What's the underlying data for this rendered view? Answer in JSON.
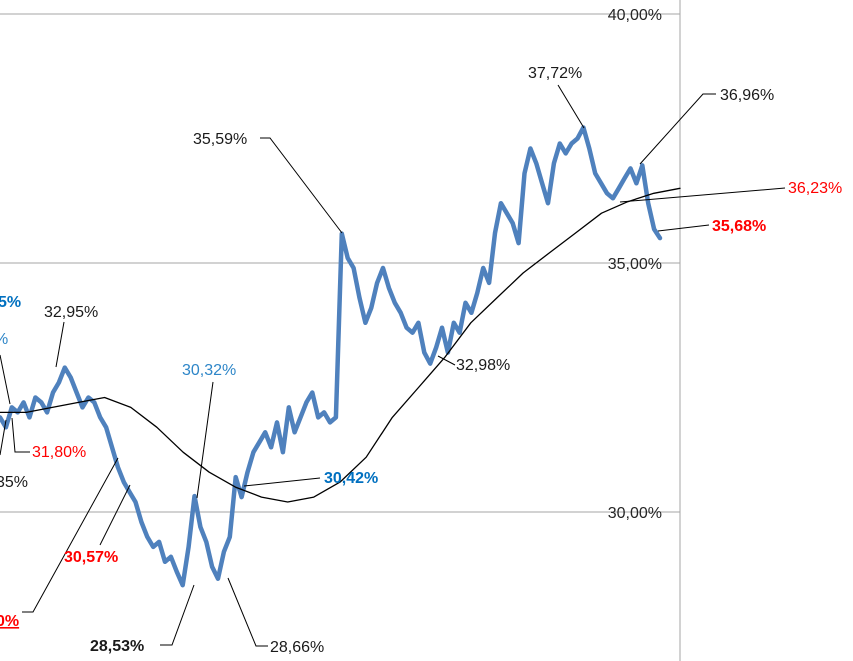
{
  "chart_data": {
    "type": "line",
    "title": "",
    "xlabel": "",
    "ylabel": "",
    "ylim": [
      27.5,
      40.0
    ],
    "y_axis_position": "right",
    "grid": true,
    "y_ticks": [
      {
        "value": 30.0,
        "label": "30,00%"
      },
      {
        "value": 35.0,
        "label": "35,00%"
      },
      {
        "value": 40.0,
        "label": "40,00%"
      }
    ],
    "colors": {
      "main_series": "#4f81bd",
      "moving_average": "#000000",
      "grid": "#a6a6a6",
      "label_black": "#1a1a1a",
      "label_red": "#ff0000",
      "label_blue": "#0070c0",
      "label_light_blue": "#2e86c8"
    },
    "series": [
      {
        "values": [
          31.9,
          31.7,
          32.1,
          32.0,
          32.2,
          31.9,
          32.3,
          32.2,
          32.0,
          32.4,
          32.6,
          32.9,
          32.7,
          32.4,
          32.1,
          32.3,
          32.2,
          31.9,
          31.7,
          31.3,
          30.9,
          30.6,
          30.4,
          30.2,
          29.8,
          29.5,
          29.3,
          29.4,
          29.0,
          29.1,
          28.8,
          28.53,
          29.3,
          30.32,
          29.7,
          29.4,
          28.9,
          28.66,
          29.2,
          29.5,
          30.7,
          30.3,
          30.8,
          31.2,
          31.4,
          31.6,
          31.3,
          31.8,
          31.2,
          32.1,
          31.6,
          31.9,
          32.2,
          32.4,
          31.9,
          32.0,
          31.8,
          31.9,
          35.59,
          35.1,
          34.9,
          34.3,
          33.8,
          34.1,
          34.6,
          34.9,
          34.5,
          34.2,
          34.0,
          33.7,
          33.6,
          33.8,
          33.2,
          32.98,
          33.3,
          33.7,
          33.2,
          33.8,
          33.6,
          34.2,
          34.0,
          34.4,
          34.9,
          34.6,
          35.6,
          36.2,
          36.0,
          35.8,
          35.4,
          36.8,
          37.3,
          37.0,
          36.6,
          36.2,
          37.0,
          37.4,
          37.2,
          37.4,
          37.5,
          37.72,
          37.3,
          36.8,
          36.6,
          36.4,
          36.3,
          36.5,
          36.7,
          36.9,
          36.6,
          36.96,
          36.2,
          35.68,
          35.5
        ],
        "color": "#4f81bd"
      },
      {
        "values": [
          32.0,
          32.0,
          32.1,
          32.2,
          32.3,
          32.1,
          31.7,
          31.2,
          30.8,
          30.5,
          30.3,
          30.2,
          30.3,
          30.6,
          31.1,
          31.9,
          32.5,
          33.1,
          33.8,
          34.3,
          34.8,
          35.2,
          35.6,
          36.0,
          36.23,
          36.4,
          36.5
        ],
        "color": "#000000"
      }
    ],
    "annotations": [
      {
        "text": "32,95%",
        "color": "black",
        "bold": false,
        "points_to_value": 32.95
      },
      {
        "text": "31,80%",
        "color": "red",
        "bold": false,
        "points_to_value": 31.8
      },
      {
        "text": "30,57%",
        "color": "red",
        "bold": true,
        "points_to_value": 30.57
      },
      {
        "text": "30,32%",
        "color": "light_blue",
        "bold": false,
        "points_to_value": 30.32
      },
      {
        "text": "30,42%",
        "color": "blue",
        "bold": true,
        "points_to_value": 30.42
      },
      {
        "text": "28,53%",
        "color": "black",
        "bold": true,
        "points_to_value": 28.53
      },
      {
        "text": "28,66%",
        "color": "black",
        "bold": false,
        "points_to_value": 28.66
      },
      {
        "text": "35,59%",
        "color": "black",
        "bold": false,
        "points_to_value": 35.59
      },
      {
        "text": "32,98%",
        "color": "black",
        "bold": false,
        "points_to_value": 32.98
      },
      {
        "text": "37,72%",
        "color": "black",
        "bold": false,
        "points_to_value": 37.72
      },
      {
        "text": "36,96%",
        "color": "black",
        "bold": false,
        "points_to_value": 36.96
      },
      {
        "text": "36,23%",
        "color": "red",
        "bold": false,
        "points_to_value": 36.23
      },
      {
        "text": "35,68%",
        "color": "red",
        "bold": true,
        "points_to_value": 35.68
      }
    ],
    "edge_labels": [
      {
        "text": "5%",
        "color": "blue",
        "bold": true
      },
      {
        "text": "%",
        "color": "light_blue",
        "bold": false
      },
      {
        "text": "35%",
        "color": "black",
        "bold": false
      },
      {
        "text": "0%",
        "color": "red",
        "bold": true,
        "underline": true
      }
    ]
  }
}
